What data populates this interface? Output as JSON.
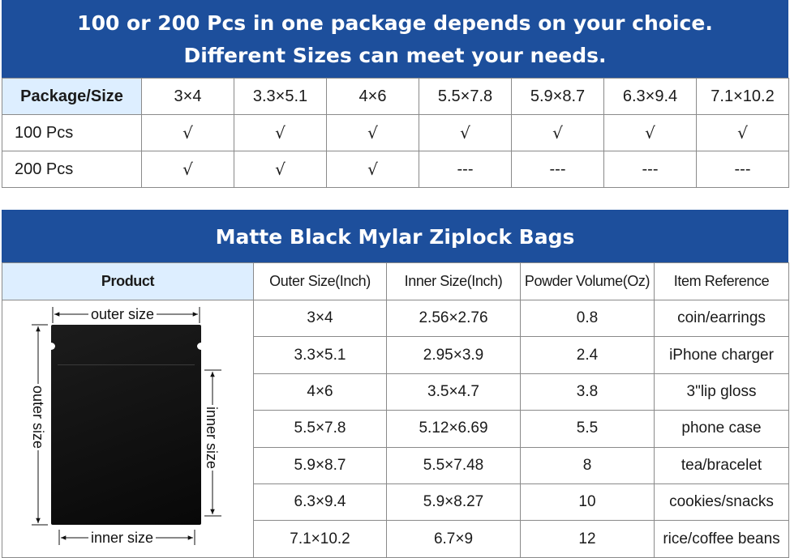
{
  "banner_top": {
    "line1": "100 or 200 Pcs in one package depends on your choice.",
    "line2": "Different Sizes can meet your needs."
  },
  "package_table": {
    "corner_label": "Package/Size",
    "sizes": [
      "3×4",
      "3.3×5.1",
      "4×6",
      "5.5×7.8",
      "5.9×8.7",
      "6.3×9.4",
      "7.1×10.2"
    ],
    "rows": [
      {
        "label": "100 Pcs",
        "cells": [
          "√",
          "√",
          "√",
          "√",
          "√",
          "√",
          "√"
        ]
      },
      {
        "label": "200 Pcs",
        "cells": [
          "√",
          "√",
          "√",
          "---",
          "---",
          "---",
          "---"
        ]
      }
    ]
  },
  "banner_bottom": {
    "title": "Matte Black Mylar Ziplock Bags"
  },
  "spec_table": {
    "product_header": "Product",
    "columns": [
      "Outer Size(Inch)",
      "Inner Size(Inch)",
      "Powder Volume(Oz)",
      "Item Reference"
    ],
    "rows": [
      [
        "3×4",
        "2.56×2.76",
        "0.8",
        "coin/earrings"
      ],
      [
        "3.3×5.1",
        "2.95×3.9",
        "2.4",
        "iPhone charger"
      ],
      [
        "4×6",
        "3.5×4.7",
        "3.8",
        "3\"lip gloss"
      ],
      [
        "5.5×7.8",
        "5.12×6.69",
        "5.5",
        "phone case"
      ],
      [
        "5.9×8.7",
        "5.5×7.48",
        "8",
        "tea/bracelet"
      ],
      [
        "6.3×9.4",
        "5.9×8.27",
        "10",
        "cookies/snacks"
      ],
      [
        "7.1×10.2",
        "6.7×9",
        "12",
        "rice/coffee beans"
      ]
    ]
  },
  "diagram": {
    "outer_size_top": "outer size",
    "outer_size_side": "outer size",
    "inner_size_side": "inner size",
    "inner_size_bottom": "inner size"
  },
  "colors": {
    "banner_blue": "#1d4f9c",
    "header_cell_blue": "#ddeeff",
    "bag_black": "#111111"
  }
}
